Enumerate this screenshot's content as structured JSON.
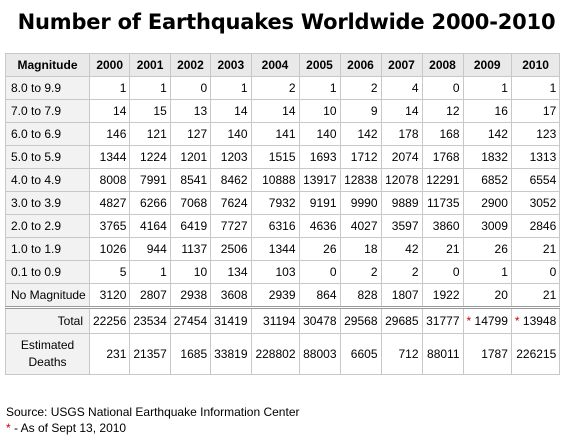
{
  "title": "Number of Earthquakes Worldwide 2000-2010",
  "table": {
    "columns": [
      "Magnitude",
      "2000",
      "2001",
      "2002",
      "2003",
      "2004",
      "2005",
      "2006",
      "2007",
      "2008",
      "2009",
      "2010"
    ],
    "rows": [
      {
        "label": "8.0 to 9.9",
        "values": [
          "1",
          "1",
          "0",
          "1",
          "2",
          "1",
          "2",
          "4",
          "0",
          "1",
          "1"
        ]
      },
      {
        "label": "7.0 to 7.9",
        "values": [
          "14",
          "15",
          "13",
          "14",
          "14",
          "10",
          "9",
          "14",
          "12",
          "16",
          "17"
        ]
      },
      {
        "label": "6.0 to 6.9",
        "values": [
          "146",
          "121",
          "127",
          "140",
          "141",
          "140",
          "142",
          "178",
          "168",
          "142",
          "123"
        ]
      },
      {
        "label": "5.0 to 5.9",
        "values": [
          "1344",
          "1224",
          "1201",
          "1203",
          "1515",
          "1693",
          "1712",
          "2074",
          "1768",
          "1832",
          "1313"
        ]
      },
      {
        "label": "4.0 to 4.9",
        "values": [
          "8008",
          "7991",
          "8541",
          "8462",
          "10888",
          "13917",
          "12838",
          "12078",
          "12291",
          "6852",
          "6554"
        ]
      },
      {
        "label": "3.0 to 3.9",
        "values": [
          "4827",
          "6266",
          "7068",
          "7624",
          "7932",
          "9191",
          "9990",
          "9889",
          "11735",
          "2900",
          "3052"
        ]
      },
      {
        "label": "2.0 to 2.9",
        "values": [
          "3765",
          "4164",
          "6419",
          "7727",
          "6316",
          "4636",
          "4027",
          "3597",
          "3860",
          "3009",
          "2846"
        ]
      },
      {
        "label": "1.0 to 1.9",
        "values": [
          "1026",
          "944",
          "1137",
          "2506",
          "1344",
          "26",
          "18",
          "42",
          "21",
          "26",
          "21"
        ]
      },
      {
        "label": "0.1 to 0.9",
        "values": [
          "5",
          "1",
          "10",
          "134",
          "103",
          "0",
          "2",
          "2",
          "0",
          "1",
          "0"
        ]
      },
      {
        "label": "No Magnitude",
        "values": [
          "3120",
          "2807",
          "2938",
          "3608",
          "2939",
          "864",
          "828",
          "1807",
          "1922",
          "20",
          "21"
        ]
      }
    ],
    "total": {
      "label": "Total",
      "values": [
        "22256",
        "23534",
        "27454",
        "31419",
        "31194",
        "30478",
        "29568",
        "29685",
        "31777",
        "14799",
        "13948"
      ],
      "starred": [
        false,
        false,
        false,
        false,
        false,
        false,
        false,
        false,
        false,
        true,
        true
      ]
    },
    "deaths": {
      "label_line1": "Estimated",
      "label_line2": "Deaths",
      "values": [
        "231",
        "21357",
        "1685",
        "33819",
        "228802",
        "88003",
        "6605",
        "712",
        "88011",
        "1787",
        "226215"
      ]
    }
  },
  "source": "Source: USGS National Earthquake Information Center",
  "footnote": {
    "marker": "*",
    "text": " - As of Sept 13, 2010"
  }
}
